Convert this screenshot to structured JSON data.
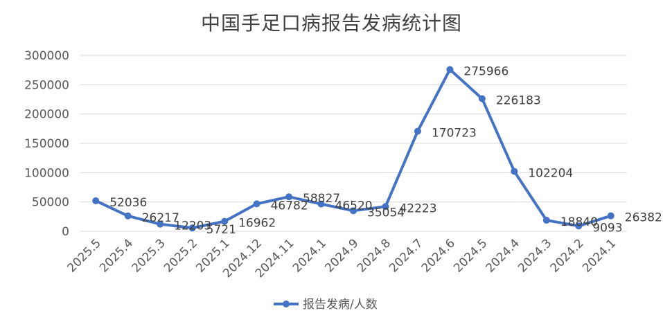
{
  "chart_data": {
    "type": "line",
    "title": "中国手足口病报告发病统计图",
    "xlabel": "",
    "ylabel": "",
    "categories": [
      "2025.5",
      "2025.4",
      "2025.3",
      "2025.2",
      "2025.1",
      "2024.12",
      "2024.11",
      "2024.1",
      "2024.9",
      "2024.8",
      "2024.7",
      "2024.6",
      "2024.5",
      "2024.4",
      "2024.3",
      "2024.2",
      "2024.1"
    ],
    "series": [
      {
        "name": "报告发病/人数",
        "values": [
          52036,
          26217,
          12203,
          5721,
          16962,
          46782,
          58827,
          46520,
          35054,
          42223,
          170723,
          275966,
          226183,
          102204,
          18840,
          9093,
          26382
        ]
      }
    ],
    "ylim": [
      0,
      300000
    ],
    "yticks": [
      0,
      50000,
      100000,
      150000,
      200000,
      250000,
      300000
    ],
    "grid": true,
    "legend_position": "bottom",
    "colors": {
      "series": "#4472C4",
      "grid": "#D9D9D9",
      "text": "#595959"
    }
  }
}
